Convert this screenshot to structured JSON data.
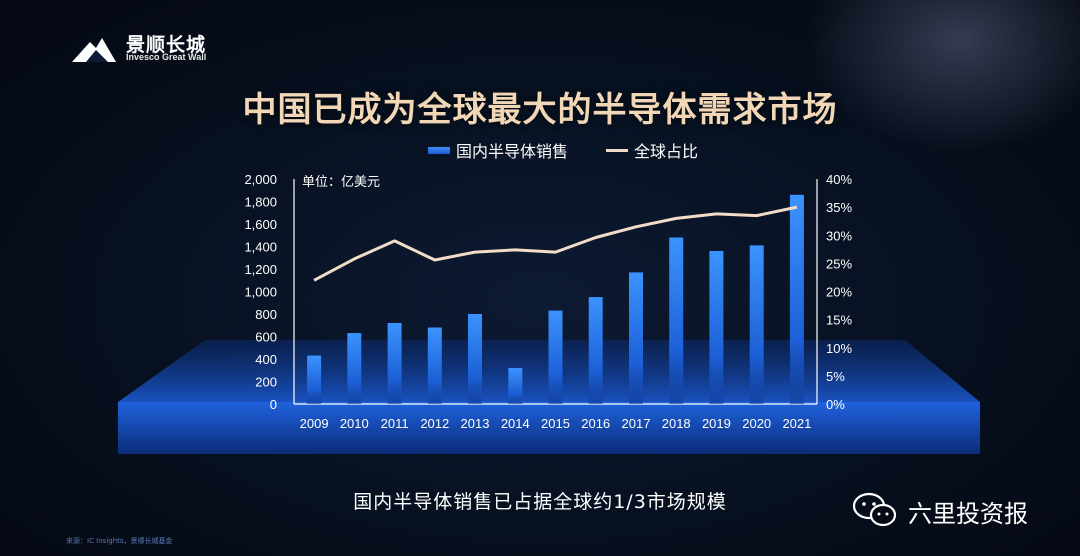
{
  "logo": {
    "cn": "景顺长城",
    "en": "Invesco Great Wall"
  },
  "title": "中国已成为全球最大的半导体需求市场",
  "legend": {
    "bar_label": "国内半导体销售",
    "line_label": "全球占比"
  },
  "unit_label": "单位：亿美元",
  "subtitle": "国内半导体销售已占据全球约1/3市场规模",
  "watermark": "六里投资报",
  "source": "来源：IC Insights，景顺长城基金",
  "colors": {
    "bar": "#2f7ff0",
    "line": "#f3dcc7",
    "title": "#f2d7b6",
    "platform": "#1e62d8"
  },
  "chart_data": {
    "type": "bar",
    "categories": [
      "2009",
      "2010",
      "2011",
      "2012",
      "2013",
      "2014",
      "2015",
      "2016",
      "2017",
      "2018",
      "2019",
      "2020",
      "2021"
    ],
    "series": [
      {
        "name": "国内半导体销售",
        "type": "bar",
        "axis": "left",
        "values": [
          430,
          630,
          720,
          680,
          800,
          320,
          830,
          950,
          1170,
          1480,
          1360,
          1410,
          1860
        ]
      },
      {
        "name": "全球占比",
        "type": "line",
        "axis": "right",
        "values": [
          22.0,
          25.8,
          29.0,
          25.6,
          27.0,
          27.4,
          27.0,
          29.6,
          31.5,
          33.0,
          33.8,
          33.5,
          35.0
        ]
      }
    ],
    "y_left": {
      "min": 0,
      "max": 2000,
      "ticks": [
        "0",
        "200",
        "400",
        "600",
        "800",
        "1,000",
        "1,200",
        "1,400",
        "1,600",
        "1,800",
        "2,000"
      ]
    },
    "y_right": {
      "min": 0,
      "max": 40,
      "ticks": [
        "0%",
        "5%",
        "10%",
        "15%",
        "20%",
        "25%",
        "30%",
        "35%",
        "40%"
      ]
    },
    "ylabel": "单位：亿美元",
    "grid": false,
    "legend_position": "top"
  }
}
